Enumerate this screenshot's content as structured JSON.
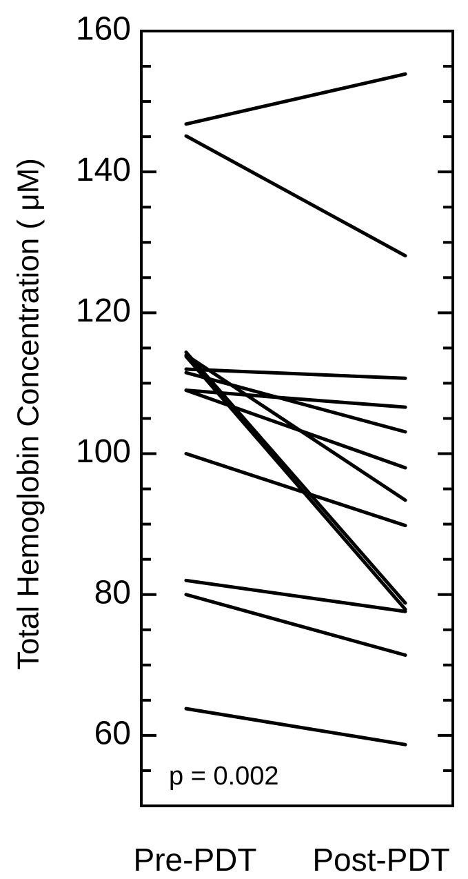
{
  "chart_data": {
    "type": "paired-line",
    "y_label": "Total Hemoglobin Concentration ( μM)",
    "annotation": "p = 0.002",
    "categories": [
      "Pre-PDT",
      "Post-PDT"
    ],
    "ylim": [
      50,
      160
    ],
    "yticks": [
      60,
      80,
      100,
      120,
      140,
      160
    ],
    "minor_yticks": [
      55,
      65,
      70,
      75,
      85,
      90,
      95,
      105,
      110,
      115,
      125,
      130,
      135,
      145,
      150,
      155
    ],
    "color": "#000000",
    "series": [
      {
        "values": [
          146.8,
          153.9
        ]
      },
      {
        "values": [
          145.1,
          128.1
        ]
      },
      {
        "values": [
          114.4,
          78.8
        ]
      },
      {
        "values": [
          113.8,
          77.9
        ]
      },
      {
        "values": [
          112.0,
          110.7
        ]
      },
      {
        "values": [
          111.5,
          103.1
        ]
      },
      {
        "values": [
          109.0,
          106.6
        ]
      },
      {
        "values": [
          109.0,
          98.0
        ]
      },
      {
        "values": [
          114.0,
          93.4
        ]
      },
      {
        "values": [
          100.0,
          89.8
        ]
      },
      {
        "values": [
          82.0,
          77.6
        ]
      },
      {
        "values": [
          80.0,
          71.4
        ]
      },
      {
        "values": [
          63.8,
          58.7
        ]
      }
    ]
  }
}
